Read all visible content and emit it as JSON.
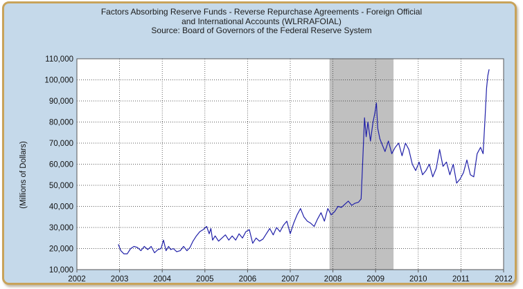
{
  "chart_data": {
    "type": "line",
    "title": "Factors Absorbing Reserve Funds - Reverse Repurchase Agreements - Foreign Official",
    "title_line2": "and International Accounts (WLRRAFOIAL)",
    "subtitle": "Source: Board of Governors of the Federal Reserve System",
    "xlabel": "",
    "ylabel": "(Millions of Dollars)",
    "xlim": [
      2002,
      2012
    ],
    "ylim": [
      10000,
      110000
    ],
    "x_ticks": [
      "2002",
      "2003",
      "2004",
      "2005",
      "2006",
      "2007",
      "2008",
      "2009",
      "2010",
      "2011",
      "2012"
    ],
    "y_ticks": [
      "10,000",
      "20,000",
      "30,000",
      "40,000",
      "50,000",
      "60,000",
      "70,000",
      "80,000",
      "90,000",
      "100,000",
      "110,000"
    ],
    "grid": true,
    "shaded_region": {
      "from": 2007.92,
      "to": 2009.42,
      "color": "#c0c0c0"
    },
    "line_color": "#1f1fa8",
    "series": [
      {
        "name": "",
        "x": [
          2002.97,
          2003.03,
          2003.1,
          2003.18,
          2003.26,
          2003.34,
          2003.42,
          2003.5,
          2003.58,
          2003.66,
          2003.74,
          2003.82,
          2003.9,
          2003.97,
          2004.03,
          2004.09,
          2004.15,
          2004.2,
          2004.26,
          2004.34,
          2004.42,
          2004.5,
          2004.58,
          2004.65,
          2004.72,
          2004.8,
          2004.88,
          2004.96,
          2005.04,
          2005.1,
          2005.14,
          2005.18,
          2005.24,
          2005.32,
          2005.4,
          2005.48,
          2005.56,
          2005.64,
          2005.72,
          2005.8,
          2005.88,
          2005.96,
          2006.04,
          2006.12,
          2006.2,
          2006.28,
          2006.36,
          2006.44,
          2006.52,
          2006.6,
          2006.68,
          2006.76,
          2006.84,
          2006.92,
          2007.0,
          2007.08,
          2007.16,
          2007.24,
          2007.32,
          2007.4,
          2007.48,
          2007.56,
          2007.64,
          2007.72,
          2007.8,
          2007.88,
          2007.96,
          2008.04,
          2008.12,
          2008.2,
          2008.28,
          2008.36,
          2008.44,
          2008.52,
          2008.6,
          2008.66,
          2008.7,
          2008.74,
          2008.78,
          2008.82,
          2008.88,
          2008.94,
          2008.98,
          2009.02,
          2009.05,
          2009.1,
          2009.16,
          2009.22,
          2009.3,
          2009.38,
          2009.46,
          2009.54,
          2009.62,
          2009.7,
          2009.78,
          2009.86,
          2009.94,
          2010.02,
          2010.1,
          2010.18,
          2010.26,
          2010.34,
          2010.42,
          2010.5,
          2010.58,
          2010.66,
          2010.74,
          2010.82,
          2010.9,
          2010.98,
          2011.06,
          2011.14,
          2011.22,
          2011.3,
          2011.38,
          2011.46,
          2011.52,
          2011.56,
          2011.6,
          2011.63,
          2011.66
        ],
        "values": [
          22000,
          19000,
          17500,
          17500,
          20000,
          21000,
          20500,
          19000,
          21000,
          19500,
          21000,
          18000,
          19500,
          20000,
          24000,
          19000,
          21000,
          19500,
          20000,
          18500,
          19000,
          21000,
          19000,
          20500,
          23500,
          26000,
          28000,
          29000,
          30500,
          27000,
          29500,
          24000,
          26000,
          23500,
          25000,
          26500,
          24000,
          26000,
          24000,
          27000,
          25000,
          28000,
          29000,
          22500,
          25000,
          23500,
          24500,
          27000,
          29500,
          26500,
          30000,
          28000,
          31000,
          33000,
          27000,
          32000,
          36000,
          39000,
          35000,
          33000,
          32000,
          30500,
          34000,
          37000,
          33000,
          39000,
          36000,
          37500,
          40000,
          39500,
          41000,
          42500,
          40500,
          41500,
          42000,
          43500,
          62000,
          82000,
          73000,
          80000,
          71000,
          80000,
          84000,
          89000,
          77000,
          72000,
          69000,
          66000,
          71000,
          65000,
          68000,
          70000,
          64000,
          70000,
          67000,
          60000,
          57000,
          61000,
          55000,
          57000,
          60000,
          54000,
          58000,
          67000,
          59000,
          61000,
          55000,
          60000,
          51000,
          53000,
          56000,
          62000,
          55000,
          54000,
          65000,
          68000,
          65000,
          80000,
          96000,
          102000,
          105000
        ]
      }
    ]
  }
}
